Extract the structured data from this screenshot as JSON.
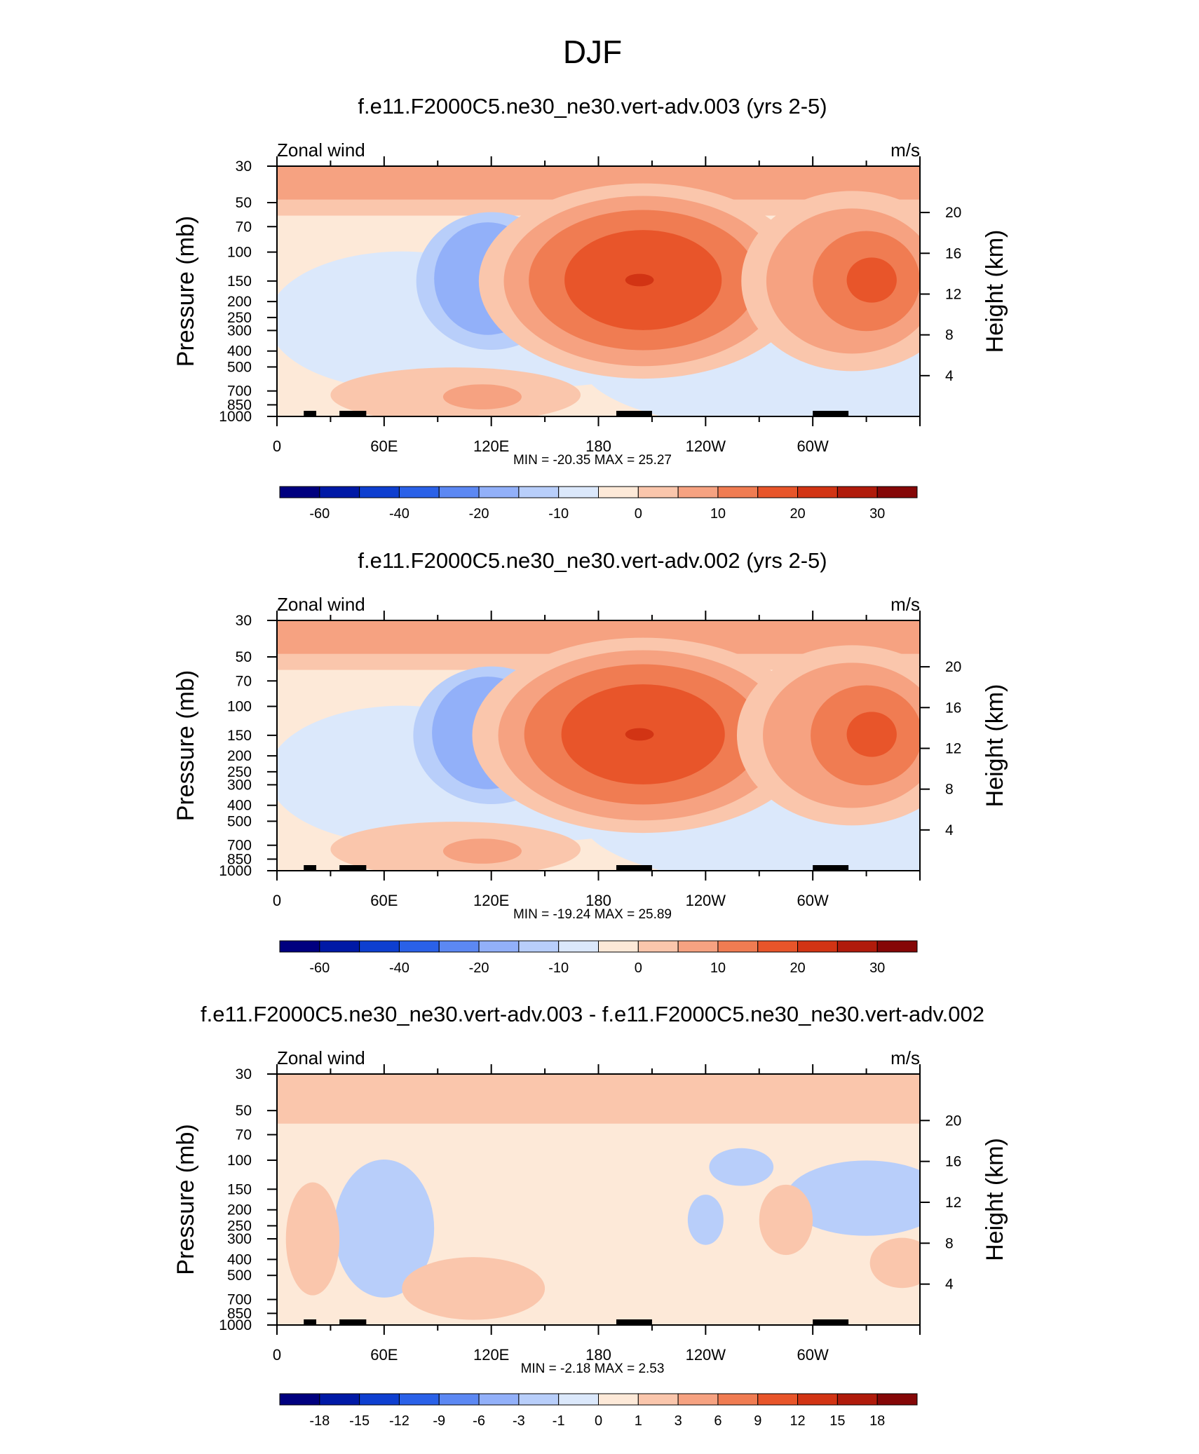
{
  "page": {
    "title": "DJF"
  },
  "chart_data": [
    {
      "type": "heatmap",
      "title": "f.e11.F2000C5.ne30_ne30.vert-adv.003 (yrs 2-5)",
      "left_label": "Zonal wind",
      "right_label": "m/s",
      "ylabel": "Pressure (mb)",
      "ylabel_right": "Height (km)",
      "x_ticks": [
        "0",
        "60E",
        "120E",
        "180",
        "120W",
        "60W"
      ],
      "y_ticks": [
        "30",
        "50",
        "70",
        "100",
        "150",
        "200",
        "250",
        "300",
        "400",
        "500",
        "700",
        "850",
        "1000"
      ],
      "y_right_ticks": [
        "20",
        "16",
        "12",
        "8",
        "4"
      ],
      "stats": "MIN = -20.35  MAX =  25.27",
      "min": -20.35,
      "max": 25.27,
      "colorbar_levels": [
        "-60",
        "-40",
        "-20",
        "-10",
        "0",
        "10",
        "20",
        "30"
      ],
      "colorbar_colors": [
        "#00007f",
        "#0019a6",
        "#0e3fd0",
        "#2a61e8",
        "#5c88f3",
        "#92b0f9",
        "#b8cefa",
        "#dbe8fb",
        "#fde9d8",
        "#fac6ac",
        "#f6a281",
        "#f07c52",
        "#e8552a",
        "#d23414",
        "#b01b0b",
        "#850707"
      ]
    },
    {
      "type": "heatmap",
      "title": "f.e11.F2000C5.ne30_ne30.vert-adv.002 (yrs 2-5)",
      "left_label": "Zonal wind",
      "right_label": "m/s",
      "ylabel": "Pressure (mb)",
      "ylabel_right": "Height (km)",
      "x_ticks": [
        "0",
        "60E",
        "120E",
        "180",
        "120W",
        "60W"
      ],
      "y_ticks": [
        "30",
        "50",
        "70",
        "100",
        "150",
        "200",
        "250",
        "300",
        "400",
        "500",
        "700",
        "850",
        "1000"
      ],
      "y_right_ticks": [
        "20",
        "16",
        "12",
        "8",
        "4"
      ],
      "stats": "MIN = -19.24  MAX =  25.89",
      "min": -19.24,
      "max": 25.89,
      "colorbar_levels": [
        "-60",
        "-40",
        "-20",
        "-10",
        "0",
        "10",
        "20",
        "30"
      ],
      "colorbar_colors": [
        "#00007f",
        "#0019a6",
        "#0e3fd0",
        "#2a61e8",
        "#5c88f3",
        "#92b0f9",
        "#b8cefa",
        "#dbe8fb",
        "#fde9d8",
        "#fac6ac",
        "#f6a281",
        "#f07c52",
        "#e8552a",
        "#d23414",
        "#b01b0b",
        "#850707"
      ]
    },
    {
      "type": "heatmap",
      "title": "f.e11.F2000C5.ne30_ne30.vert-adv.003 - f.e11.F2000C5.ne30_ne30.vert-adv.002",
      "left_label": "Zonal wind",
      "right_label": "m/s",
      "ylabel": "Pressure (mb)",
      "ylabel_right": "Height (km)",
      "x_ticks": [
        "0",
        "60E",
        "120E",
        "180",
        "120W",
        "60W"
      ],
      "y_ticks": [
        "30",
        "50",
        "70",
        "100",
        "150",
        "200",
        "250",
        "300",
        "400",
        "500",
        "700",
        "850",
        "1000"
      ],
      "y_right_ticks": [
        "20",
        "16",
        "12",
        "8",
        "4"
      ],
      "stats": "MIN =  -2.18  MAX =   2.53",
      "min": -2.18,
      "max": 2.53,
      "colorbar_levels": [
        "-18",
        "-15",
        "-12",
        "-9",
        "-6",
        "-3",
        "-1",
        "0",
        "1",
        "3",
        "6",
        "9",
        "12",
        "15",
        "18"
      ],
      "colorbar_colors": [
        "#00007f",
        "#0019a6",
        "#0e3fd0",
        "#2a61e8",
        "#5c88f3",
        "#92b0f9",
        "#b8cefa",
        "#dbe8fb",
        "#fde9d8",
        "#fac6ac",
        "#f6a281",
        "#f07c52",
        "#e8552a",
        "#d23414",
        "#b01b0b",
        "#850707"
      ]
    }
  ]
}
